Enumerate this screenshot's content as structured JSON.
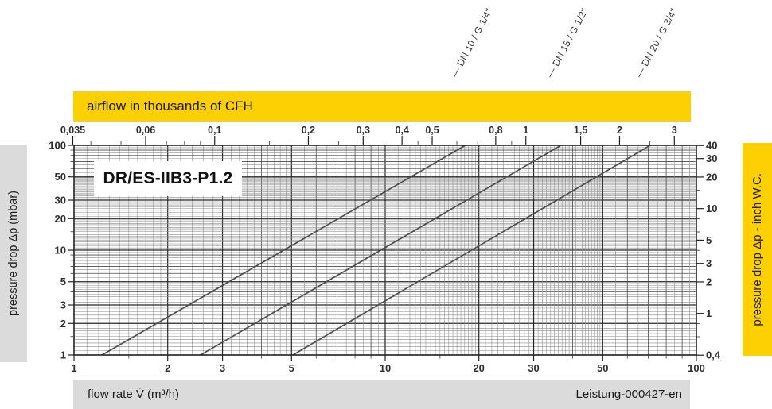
{
  "banner": {
    "label": "airflow in thousands of CFH"
  },
  "title_box": {
    "label": "DR/ES-IIB3-P1.2"
  },
  "side_left": {
    "label": "pressure drop Δp (mbar)"
  },
  "side_right": {
    "label": "pressure drop Δp - inch W.C."
  },
  "footer": {
    "x_label": "flow rate V̇ (m³/h)",
    "doc_reference": "Leistung-000427-en"
  },
  "colors": {
    "accent_yellow": "#FCD002",
    "strip_gray": "#DBDBDB",
    "grid_major": "#262626",
    "grid_mid": "#4a4a4a",
    "grid_minor": "#8a8a8a",
    "series_line": "#4d4d4d",
    "text": "#1a1a1a"
  },
  "chart_data": {
    "type": "line",
    "title": "DR/ES-IIB3-P1.2",
    "scale": "log-log",
    "grid": "on",
    "x_axis": {
      "label": "flow rate V̇ (m³/h)",
      "min": 1,
      "max": 100,
      "major_ticks": [
        1,
        2,
        3,
        5,
        10,
        20,
        30,
        50,
        100
      ],
      "minor_ticks": [
        1.5,
        4,
        6,
        7,
        8,
        9,
        15,
        40,
        60,
        70,
        80,
        90
      ]
    },
    "y_axis_left": {
      "label": "pressure drop Δp (mbar)",
      "min": 1,
      "max": 100,
      "major_ticks": [
        100,
        50,
        30,
        20,
        10,
        5,
        3,
        2,
        1
      ],
      "minor_ticks": [
        1.5,
        4,
        6,
        7,
        8,
        9,
        15,
        40,
        60,
        70,
        80,
        90
      ]
    },
    "y_axis_right": {
      "label": "pressure drop Δp - inch W.C.",
      "inwc_per_mbar": 0.4015,
      "tick_values": [
        40,
        30,
        20,
        10,
        5,
        3,
        2,
        1,
        0.4
      ],
      "tick_labels": [
        "40",
        "30",
        "20",
        "10",
        "5",
        "3",
        "2",
        "1",
        "0,4"
      ],
      "minor_ticks": [
        15,
        8,
        6,
        4,
        1.5,
        0.8,
        0.6
      ]
    },
    "x_axis_top": {
      "label": "airflow in thousands of CFH",
      "m3h_per_kcfh": 28.316,
      "tick_values": [
        0.035,
        0.06,
        0.1,
        0.2,
        0.3,
        0.4,
        0.5,
        0.8,
        1,
        1.5,
        2,
        3
      ],
      "tick_labels": [
        "0,035",
        "0,06",
        "0,1",
        "0,2",
        "0,3",
        "0,4",
        "0,5",
        "0,8",
        "1",
        "1,5",
        "2",
        "3"
      ],
      "minor_ticks": [
        0.04,
        0.05,
        0.07,
        0.08,
        0.09,
        0.15,
        0.25,
        0.35,
        0.45,
        0.6,
        0.7,
        0.9,
        2.5
      ]
    },
    "series_leader": "—",
    "series": [
      {
        "name": "DN 10 / G 1/4\"",
        "flow_m3h_at_min_pressure": 1.23,
        "flow_m3h_at_max_pressure": 18.1
      },
      {
        "name": "DN 15 / G 1/2\"",
        "flow_m3h_at_min_pressure": 2.55,
        "flow_m3h_at_max_pressure": 36.7
      },
      {
        "name": "DN 20 / G 3/4\"",
        "flow_m3h_at_min_pressure": 5.05,
        "flow_m3h_at_max_pressure": 71.1
      }
    ],
    "footer": "Leistung-000427-en"
  }
}
